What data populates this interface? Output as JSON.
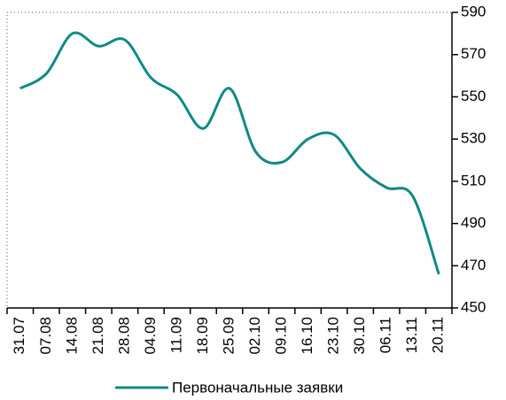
{
  "chart_data": {
    "type": "line",
    "categories": [
      "31.07",
      "07.08",
      "14.08",
      "21.08",
      "28.08",
      "04.09",
      "11.09",
      "18.09",
      "25.09",
      "02.10",
      "09.10",
      "16.10",
      "23.10",
      "30.10",
      "06.11",
      "13.11",
      "20.11"
    ],
    "series": [
      {
        "name": "Первоначальные заявки",
        "color": "#0e8a86",
        "values": [
          554,
          561,
          580,
          574,
          577,
          559,
          551,
          535,
          554,
          524,
          519,
          530,
          532,
          516,
          507,
          503,
          466
        ]
      }
    ],
    "ylim": [
      450,
      590
    ],
    "yticks": [
      450,
      470,
      490,
      510,
      530,
      550,
      570,
      590
    ]
  }
}
